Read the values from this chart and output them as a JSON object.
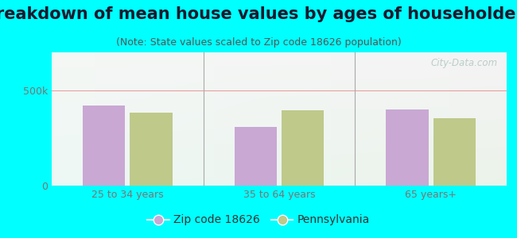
{
  "title": "Breakdown of mean house values by ages of householders",
  "subtitle": "(Note: State values scaled to Zip code 18626 population)",
  "categories": [
    "25 to 34 years",
    "35 to 64 years",
    "65 years+"
  ],
  "zip_values": [
    420000,
    310000,
    400000
  ],
  "state_values": [
    385000,
    395000,
    355000
  ],
  "ylim": [
    0,
    700000
  ],
  "yticks": [
    0,
    500000
  ],
  "ytick_labels": [
    "0",
    "500k"
  ],
  "zip_color": "#c9a8d4",
  "state_color": "#bec98a",
  "background_color": "#00ffff",
  "watermark": "City-Data.com",
  "legend_zip_label": "Zip code 18626",
  "legend_state_label": "Pennsylvania",
  "title_fontsize": 15,
  "subtitle_fontsize": 9,
  "tick_label_fontsize": 9,
  "legend_fontsize": 10,
  "title_color": "#1a1a2e",
  "subtitle_color": "#555555",
  "tick_color": "#777777"
}
